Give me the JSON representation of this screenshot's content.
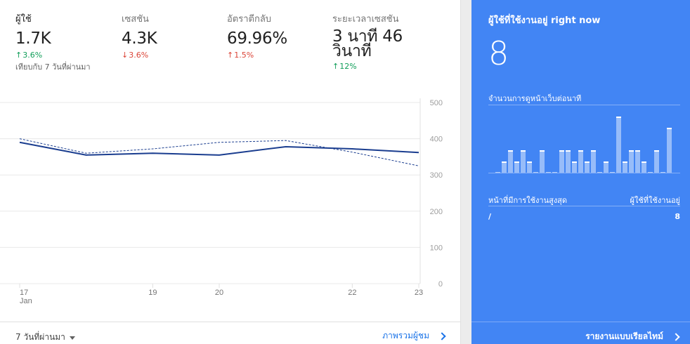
{
  "metrics": [
    {
      "label": "ผู้ใช้",
      "value": "1.7K",
      "change": "3.6%",
      "direction": "up",
      "color": "#0f9d58",
      "compare": "เทียบกับ 7 วันที่ผ่านมา"
    },
    {
      "label": "เซสชัน",
      "value": "4.3K",
      "change": "3.6%",
      "direction": "down",
      "color": "#db4437"
    },
    {
      "label": "อัตราตีกลับ",
      "value": "69.96%",
      "change": "1.5%",
      "direction": "up",
      "color": "#db4437"
    },
    {
      "label": "ระยะเวลาเซสชัน",
      "value": "3 นาที 46 วินาที",
      "change": "12%",
      "direction": "up",
      "color": "#0f9d58"
    }
  ],
  "chart_data": {
    "type": "line",
    "x_ticks": [
      "17",
      "19",
      "20",
      "22",
      "23"
    ],
    "x_tick_sub": "Jan",
    "y_ticks": [
      "500",
      "400",
      "300",
      "200",
      "100",
      "0"
    ],
    "ylim": [
      0,
      500
    ],
    "x": [
      17,
      18,
      19,
      20,
      21,
      22,
      23
    ],
    "series": [
      {
        "style": "solid",
        "color": "#1a3d8f",
        "values": [
          390,
          355,
          360,
          355,
          378,
          372,
          362
        ]
      },
      {
        "style": "dashed",
        "color": "#1a3d8f",
        "values": [
          400,
          360,
          372,
          390,
          395,
          363,
          325
        ]
      }
    ]
  },
  "footer": {
    "range_label": "7 วันที่ผ่านมา",
    "overview_link": "ภาพรวมผู้ชม"
  },
  "realtime": {
    "title": "ผู้ใช้ที่ใช้งานอยู่ right now",
    "count": "8",
    "pageviews_label": "จำนวนการดูหน้าเว็บต่อนาที",
    "bars": [
      0,
      1,
      2,
      1,
      2,
      1,
      0,
      2,
      0,
      0,
      2,
      2,
      1,
      2,
      1,
      2,
      0,
      1,
      0,
      5,
      1,
      2,
      2,
      1,
      0,
      2,
      0,
      4
    ],
    "table_header_left": "หน้าที่มีการใช้งานสูงสุด",
    "table_header_right": "ผู้ใช้ที่ใช้งานอยู่",
    "rows": [
      {
        "page": "/",
        "users": "8"
      }
    ],
    "report_link": "รายงานแบบเรียลไทม์"
  }
}
